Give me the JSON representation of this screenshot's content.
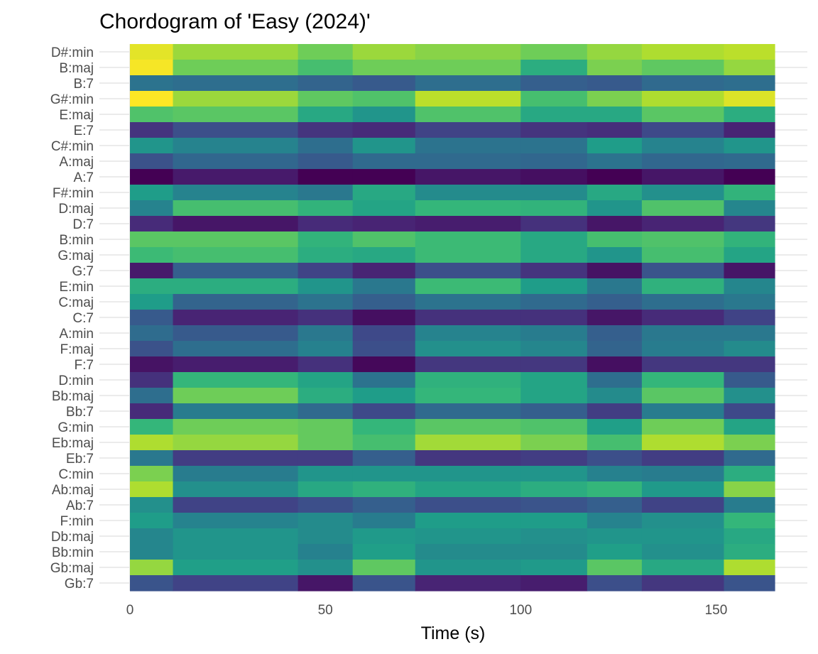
{
  "chart_data": {
    "type": "heatmap",
    "title": "Chordogram of 'Easy (2024)'",
    "xlabel": "Time (s)",
    "ylabel": "",
    "xlim": [
      0,
      165
    ],
    "x_ticks": [
      0,
      50,
      100,
      150
    ],
    "grid": true,
    "legend": "none",
    "colormap": "viridis",
    "time_segments": [
      0,
      11,
      43,
      57,
      73,
      100,
      117,
      131,
      152,
      165
    ],
    "chords": [
      "D#:min",
      "B:maj",
      "B:7",
      "G#:min",
      "E:maj",
      "E:7",
      "C#:min",
      "A:maj",
      "A:7",
      "F#:min",
      "D:maj",
      "D:7",
      "B:min",
      "G:maj",
      "G:7",
      "E:min",
      "C:maj",
      "C:7",
      "A:min",
      "F:maj",
      "F:7",
      "D:min",
      "Bb:maj",
      "Bb:7",
      "G:min",
      "Eb:maj",
      "Eb:7",
      "C:min",
      "Ab:maj",
      "Ab:7",
      "F:min",
      "Db:maj",
      "Bb:min",
      "Gb:maj",
      "Gb:7"
    ],
    "values": [
      [
        0.96,
        0.85,
        0.78,
        0.85,
        0.82,
        0.78,
        0.84,
        0.88,
        0.9
      ],
      [
        0.99,
        0.78,
        0.7,
        0.78,
        0.78,
        0.62,
        0.8,
        0.75,
        0.84
      ],
      [
        0.38,
        0.36,
        0.32,
        0.28,
        0.36,
        0.3,
        0.28,
        0.34,
        0.36
      ],
      [
        1.0,
        0.85,
        0.75,
        0.72,
        0.9,
        0.7,
        0.8,
        0.88,
        0.95
      ],
      [
        0.72,
        0.74,
        0.6,
        0.52,
        0.72,
        0.6,
        0.6,
        0.74,
        0.62
      ],
      [
        0.15,
        0.24,
        0.15,
        0.12,
        0.2,
        0.15,
        0.13,
        0.22,
        0.1
      ],
      [
        0.52,
        0.45,
        0.36,
        0.52,
        0.38,
        0.38,
        0.55,
        0.45,
        0.52
      ],
      [
        0.25,
        0.33,
        0.28,
        0.34,
        0.34,
        0.33,
        0.38,
        0.33,
        0.34
      ],
      [
        0.0,
        0.07,
        0.0,
        0.0,
        0.06,
        0.04,
        0.0,
        0.06,
        0.0
      ],
      [
        0.55,
        0.45,
        0.4,
        0.6,
        0.48,
        0.48,
        0.6,
        0.5,
        0.65
      ],
      [
        0.45,
        0.7,
        0.65,
        0.58,
        0.66,
        0.65,
        0.52,
        0.72,
        0.46
      ],
      [
        0.12,
        0.06,
        0.12,
        0.1,
        0.08,
        0.14,
        0.06,
        0.1,
        0.16
      ],
      [
        0.74,
        0.74,
        0.65,
        0.72,
        0.68,
        0.6,
        0.7,
        0.72,
        0.65
      ],
      [
        0.68,
        0.7,
        0.62,
        0.6,
        0.68,
        0.6,
        0.52,
        0.7,
        0.58
      ],
      [
        0.07,
        0.3,
        0.2,
        0.1,
        0.24,
        0.15,
        0.05,
        0.26,
        0.06
      ],
      [
        0.62,
        0.62,
        0.52,
        0.4,
        0.68,
        0.55,
        0.4,
        0.64,
        0.46
      ],
      [
        0.55,
        0.32,
        0.38,
        0.3,
        0.38,
        0.34,
        0.3,
        0.36,
        0.4
      ],
      [
        0.28,
        0.1,
        0.14,
        0.04,
        0.14,
        0.14,
        0.06,
        0.12,
        0.2
      ],
      [
        0.35,
        0.28,
        0.4,
        0.22,
        0.45,
        0.42,
        0.3,
        0.4,
        0.4
      ],
      [
        0.25,
        0.36,
        0.44,
        0.24,
        0.5,
        0.46,
        0.32,
        0.42,
        0.48
      ],
      [
        0.05,
        0.08,
        0.14,
        0.02,
        0.16,
        0.16,
        0.04,
        0.16,
        0.16
      ],
      [
        0.14,
        0.66,
        0.58,
        0.38,
        0.64,
        0.58,
        0.36,
        0.66,
        0.28
      ],
      [
        0.36,
        0.78,
        0.62,
        0.55,
        0.66,
        0.58,
        0.48,
        0.74,
        0.5
      ],
      [
        0.12,
        0.42,
        0.34,
        0.22,
        0.34,
        0.3,
        0.18,
        0.42,
        0.22
      ],
      [
        0.66,
        0.78,
        0.76,
        0.66,
        0.74,
        0.72,
        0.56,
        0.78,
        0.58
      ],
      [
        0.88,
        0.84,
        0.76,
        0.7,
        0.86,
        0.8,
        0.7,
        0.88,
        0.8
      ],
      [
        0.4,
        0.18,
        0.18,
        0.3,
        0.16,
        0.18,
        0.24,
        0.18,
        0.34
      ],
      [
        0.8,
        0.42,
        0.52,
        0.52,
        0.52,
        0.52,
        0.44,
        0.42,
        0.62
      ],
      [
        0.88,
        0.5,
        0.6,
        0.64,
        0.58,
        0.62,
        0.66,
        0.54,
        0.82
      ],
      [
        0.5,
        0.2,
        0.24,
        0.3,
        0.24,
        0.26,
        0.3,
        0.2,
        0.42
      ],
      [
        0.55,
        0.45,
        0.48,
        0.42,
        0.55,
        0.55,
        0.45,
        0.5,
        0.66
      ],
      [
        0.46,
        0.52,
        0.48,
        0.54,
        0.52,
        0.5,
        0.52,
        0.52,
        0.6
      ],
      [
        0.46,
        0.52,
        0.44,
        0.56,
        0.48,
        0.48,
        0.56,
        0.5,
        0.62
      ],
      [
        0.84,
        0.56,
        0.5,
        0.75,
        0.52,
        0.54,
        0.74,
        0.6,
        0.88
      ],
      [
        0.26,
        0.2,
        0.06,
        0.26,
        0.1,
        0.08,
        0.24,
        0.16,
        0.26
      ]
    ]
  }
}
